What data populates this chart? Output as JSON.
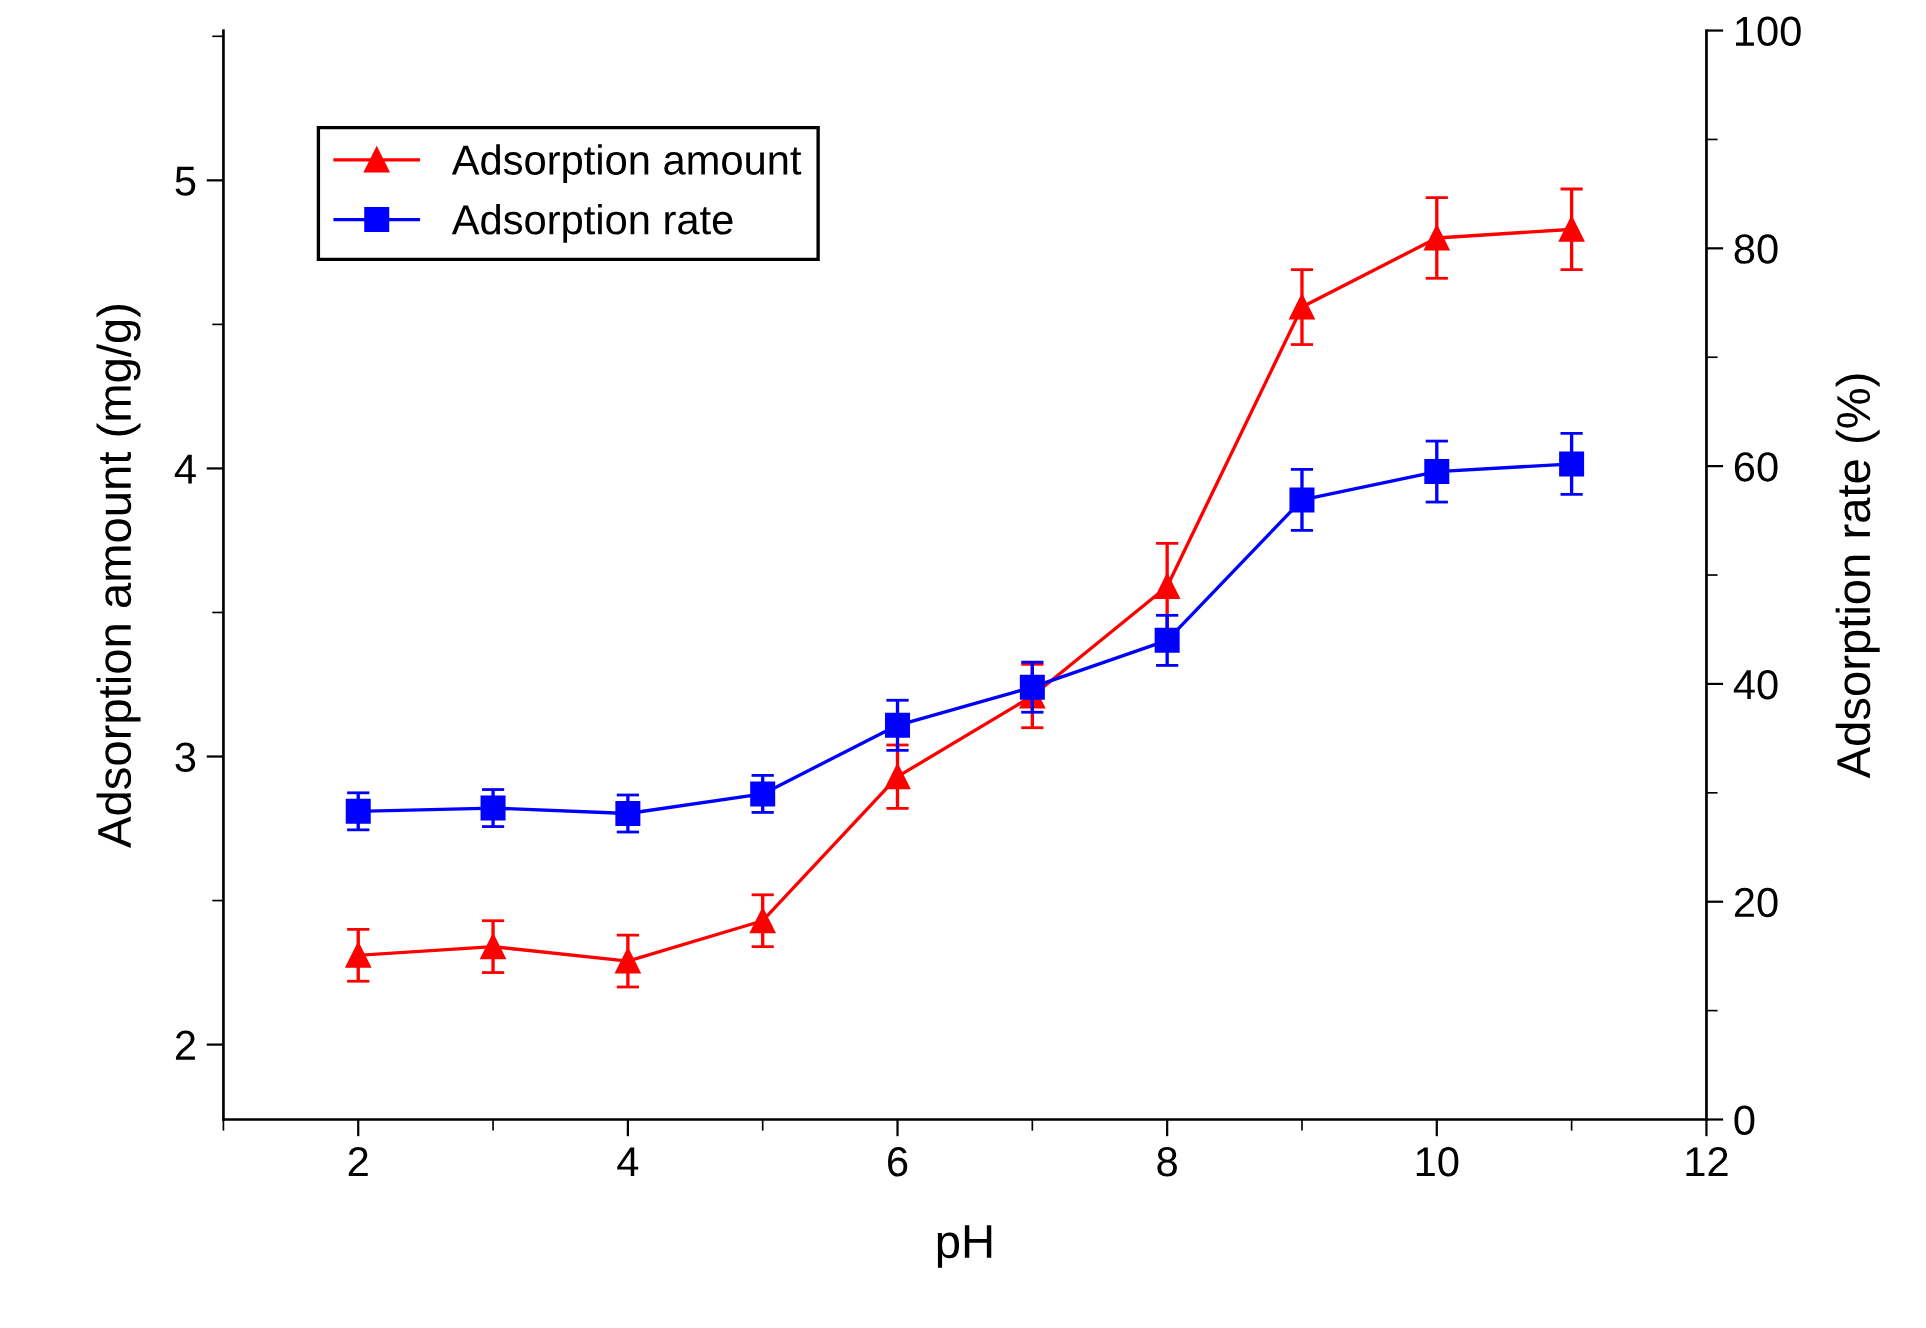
{
  "chart_data": {
    "type": "line",
    "xlabel": "pH",
    "ylabel": "Adsorption amount (mg/g)",
    "y2label": "Adsorption rate (%)",
    "x": [
      2,
      3,
      4,
      5,
      6,
      7,
      8,
      9,
      10,
      11
    ],
    "xlim": [
      1,
      12
    ],
    "xticks": [
      2,
      4,
      6,
      8,
      10,
      12
    ],
    "ylim": [
      1.74,
      5.52
    ],
    "yticks": [
      2,
      3,
      4,
      5
    ],
    "y2lim": [
      0,
      100
    ],
    "y2ticks": [
      0,
      20,
      40,
      60,
      80,
      100
    ],
    "legend": "top left",
    "grid": false,
    "series": [
      {
        "name": "Adsorption amount",
        "color": "#ff0000",
        "marker": "triangle",
        "values": [
          2.31,
          2.34,
          2.29,
          2.43,
          2.93,
          3.21,
          3.59,
          4.56,
          4.8,
          4.83
        ],
        "errors": [
          0.09,
          0.09,
          0.09,
          0.09,
          0.11,
          0.11,
          0.15,
          0.13,
          0.14,
          0.14
        ]
      },
      {
        "name": "Adsorption rate",
        "color": "#0000ff",
        "marker": "square",
        "axis": "y2",
        "values": [
          28.3,
          28.6,
          28.1,
          29.9,
          36.2,
          39.7,
          44.0,
          56.9,
          59.5,
          60.2
        ],
        "errors": [
          1.7,
          1.7,
          1.7,
          1.7,
          2.3,
          2.3,
          2.3,
          2.8,
          2.8,
          2.8
        ]
      }
    ]
  }
}
